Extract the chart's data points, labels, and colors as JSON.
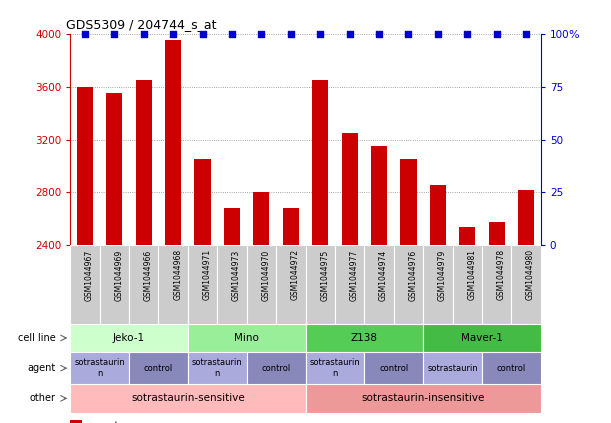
{
  "title": "GDS5309 / 204744_s_at",
  "samples": [
    "GSM1044967",
    "GSM1044969",
    "GSM1044966",
    "GSM1044968",
    "GSM1044971",
    "GSM1044973",
    "GSM1044970",
    "GSM1044972",
    "GSM1044975",
    "GSM1044977",
    "GSM1044974",
    "GSM1044976",
    "GSM1044979",
    "GSM1044981",
    "GSM1044978",
    "GSM1044980"
  ],
  "counts": [
    3600,
    3550,
    3650,
    3950,
    3050,
    2680,
    2800,
    2680,
    3650,
    3250,
    3150,
    3050,
    2860,
    2540,
    2580,
    2820
  ],
  "percentiles": [
    100,
    100,
    100,
    100,
    100,
    100,
    100,
    100,
    100,
    100,
    100,
    100,
    100,
    100,
    100,
    100
  ],
  "bar_color": "#cc0000",
  "dot_color": "#0000cc",
  "ylim_left": [
    2400,
    4000
  ],
  "ylim_right": [
    0,
    100
  ],
  "yticks_left": [
    2400,
    2800,
    3200,
    3600,
    4000
  ],
  "yticks_right": [
    0,
    25,
    50,
    75,
    100
  ],
  "cell_lines": [
    {
      "label": "Jeko-1",
      "start": 0,
      "end": 4,
      "color": "#ccffcc"
    },
    {
      "label": "Mino",
      "start": 4,
      "end": 8,
      "color": "#99ee99"
    },
    {
      "label": "Z138",
      "start": 8,
      "end": 12,
      "color": "#55cc55"
    },
    {
      "label": "Maver-1",
      "start": 12,
      "end": 16,
      "color": "#44bb44"
    }
  ],
  "agents": [
    {
      "label": "sotrastaurin\nn",
      "start": 0,
      "end": 2,
      "color": "#aaaadd"
    },
    {
      "label": "control",
      "start": 2,
      "end": 4,
      "color": "#8888bb"
    },
    {
      "label": "sotrastaurin\nn",
      "start": 4,
      "end": 6,
      "color": "#aaaadd"
    },
    {
      "label": "control",
      "start": 6,
      "end": 8,
      "color": "#8888bb"
    },
    {
      "label": "sotrastaurin\nn",
      "start": 8,
      "end": 10,
      "color": "#aaaadd"
    },
    {
      "label": "control",
      "start": 10,
      "end": 12,
      "color": "#8888bb"
    },
    {
      "label": "sotrastaurin",
      "start": 12,
      "end": 14,
      "color": "#aaaadd"
    },
    {
      "label": "control",
      "start": 14,
      "end": 16,
      "color": "#8888bb"
    }
  ],
  "others": [
    {
      "label": "sotrastaurin-sensitive",
      "start": 0,
      "end": 8,
      "color": "#ffbbbb"
    },
    {
      "label": "sotrastaurin-insensitive",
      "start": 8,
      "end": 16,
      "color": "#ee9999"
    }
  ],
  "legend_count_color": "#cc0000",
  "legend_dot_color": "#0000cc",
  "grid_color": "#888888",
  "tick_color_left": "#cc0000",
  "tick_color_right": "#0000cc",
  "bg_color": "#ffffff",
  "sample_box_color": "#cccccc"
}
